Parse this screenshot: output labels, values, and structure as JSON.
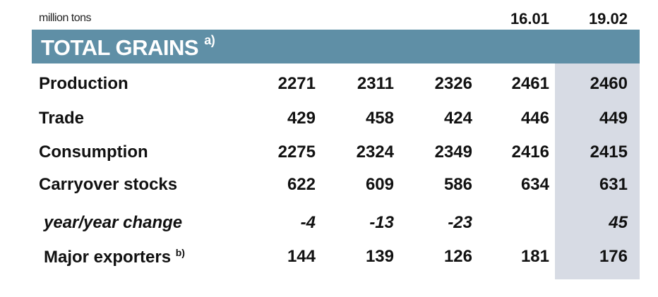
{
  "unit_label": "million tons",
  "column_headers": [
    "",
    "",
    "",
    "16.01",
    "19.02"
  ],
  "section": {
    "title": "TOTAL GRAINS",
    "footnote": "a)"
  },
  "colors": {
    "banner": "#5f8fa6",
    "highlight_column": "#d7dbe4"
  },
  "rows": [
    {
      "label": "Production",
      "values": [
        "2271",
        "2311",
        "2326",
        "2461",
        "2460"
      ]
    },
    {
      "label": "Trade",
      "values": [
        "429",
        "458",
        "424",
        "446",
        "449"
      ]
    },
    {
      "label": "Consumption",
      "values": [
        "2275",
        "2324",
        "2349",
        "2416",
        "2415"
      ]
    },
    {
      "label": "Carryover stocks",
      "values": [
        "622",
        "609",
        "586",
        "634",
        "631"
      ]
    },
    {
      "label": "year/year change",
      "values": [
        "-4",
        "-13",
        "-23",
        "",
        "45"
      ]
    },
    {
      "label": "Major exporters",
      "footnote": "b)",
      "values": [
        "144",
        "139",
        "126",
        "181",
        "176"
      ]
    }
  ]
}
